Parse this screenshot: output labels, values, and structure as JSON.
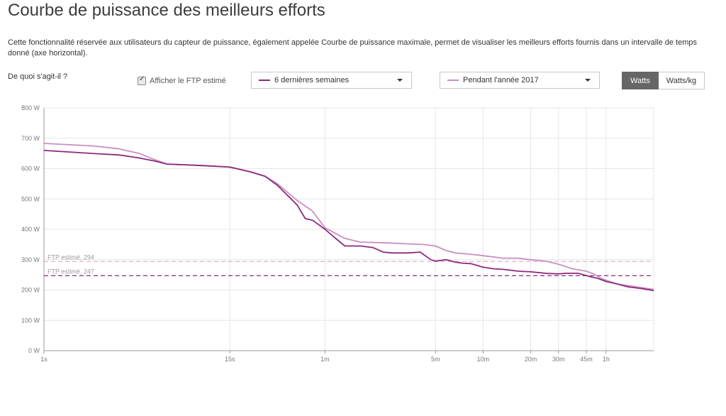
{
  "page": {
    "title": "Courbe de puissance des meilleurs efforts",
    "description": "Cette fonctionnalité réservée aux utilisateurs du capteur de puissance, également appelée Courbe de puissance maximale, permet de visualiser les meilleurs efforts fournis dans un intervalle de temps donné (axe horizontal).",
    "help_link": "De quoi s'agit-il ?"
  },
  "controls": {
    "ftp_checkbox_label": "Afficher le FTP estimé",
    "ftp_checked": true,
    "range1_label": "6 dernières semaines",
    "range2_label": "Pendant l'année 2017",
    "unit_watts": "Watts",
    "unit_wkg": "Watts/kg",
    "selected_unit": "Watts"
  },
  "colors": {
    "series1": "#8c2a7e",
    "series2": "#c88fbf",
    "ftp1": "#8c2a7e",
    "ftp2": "#e5a9c8",
    "grid": "#e6e6e6",
    "toggle_active": "#666666"
  },
  "chart_data": {
    "type": "line",
    "title": "",
    "xlabel": "",
    "ylabel": "",
    "x_scale": "log",
    "x_unit": "seconds",
    "xlim": [
      1,
      7200
    ],
    "ylim": [
      0,
      800
    ],
    "grid": true,
    "y_ticks": [
      0,
      100,
      200,
      300,
      400,
      500,
      600,
      700,
      800
    ],
    "y_tick_labels": [
      "0 W",
      "100 W",
      "200 W",
      "300 W",
      "400 W",
      "500 W",
      "600 W",
      "700 W",
      "800 W"
    ],
    "x_ticks": [
      1,
      15,
      60,
      300,
      600,
      1200,
      1800,
      2700,
      3600
    ],
    "x_tick_labels": [
      "1s",
      "15s",
      "1m",
      "5m",
      "10m",
      "20m",
      "30m",
      "45m",
      "1h"
    ],
    "series": [
      {
        "name": "6 dernières semaines",
        "points": [
          [
            1,
            660
          ],
          [
            2,
            650
          ],
          [
            3,
            645
          ],
          [
            4,
            635
          ],
          [
            5,
            625
          ],
          [
            6,
            615
          ],
          [
            10,
            610
          ],
          [
            15,
            605
          ],
          [
            20,
            590
          ],
          [
            25,
            575
          ],
          [
            30,
            545
          ],
          [
            40,
            480
          ],
          [
            45,
            435
          ],
          [
            50,
            430
          ],
          [
            60,
            400
          ],
          [
            70,
            370
          ],
          [
            80,
            345
          ],
          [
            100,
            345
          ],
          [
            120,
            340
          ],
          [
            140,
            325
          ],
          [
            160,
            322
          ],
          [
            200,
            322
          ],
          [
            240,
            325
          ],
          [
            280,
            300
          ],
          [
            300,
            295
          ],
          [
            350,
            300
          ],
          [
            400,
            292
          ],
          [
            450,
            288
          ],
          [
            500,
            287
          ],
          [
            600,
            275
          ],
          [
            700,
            270
          ],
          [
            800,
            268
          ],
          [
            1000,
            262
          ],
          [
            1200,
            260
          ],
          [
            1500,
            255
          ],
          [
            1800,
            253
          ],
          [
            2000,
            255
          ],
          [
            2400,
            255
          ],
          [
            2800,
            245
          ],
          [
            3200,
            238
          ],
          [
            3600,
            228
          ],
          [
            4200,
            220
          ],
          [
            5000,
            210
          ],
          [
            6000,
            205
          ],
          [
            7200,
            198
          ]
        ]
      },
      {
        "name": "Pendant l'année 2017",
        "points": [
          [
            1,
            683
          ],
          [
            2,
            675
          ],
          [
            3,
            665
          ],
          [
            4,
            650
          ],
          [
            5,
            630
          ],
          [
            6,
            615
          ],
          [
            10,
            610
          ],
          [
            15,
            605
          ],
          [
            20,
            590
          ],
          [
            25,
            575
          ],
          [
            30,
            550
          ],
          [
            40,
            495
          ],
          [
            50,
            460
          ],
          [
            60,
            405
          ],
          [
            80,
            370
          ],
          [
            100,
            358
          ],
          [
            150,
            355
          ],
          [
            200,
            352
          ],
          [
            250,
            350
          ],
          [
            300,
            345
          ],
          [
            350,
            330
          ],
          [
            400,
            322
          ],
          [
            500,
            318
          ],
          [
            600,
            313
          ],
          [
            800,
            305
          ],
          [
            1000,
            305
          ],
          [
            1200,
            300
          ],
          [
            1500,
            295
          ],
          [
            1800,
            285
          ],
          [
            2200,
            270
          ],
          [
            2700,
            262
          ],
          [
            3000,
            253
          ],
          [
            3300,
            240
          ],
          [
            3600,
            232
          ],
          [
            4200,
            220
          ],
          [
            5000,
            214
          ],
          [
            6000,
            208
          ],
          [
            7200,
            202
          ]
        ]
      }
    ],
    "ftp_lines": [
      {
        "label": "FTP estimé, 294",
        "value": 294
      },
      {
        "label": "FTP estimé, 247",
        "value": 247
      }
    ]
  }
}
